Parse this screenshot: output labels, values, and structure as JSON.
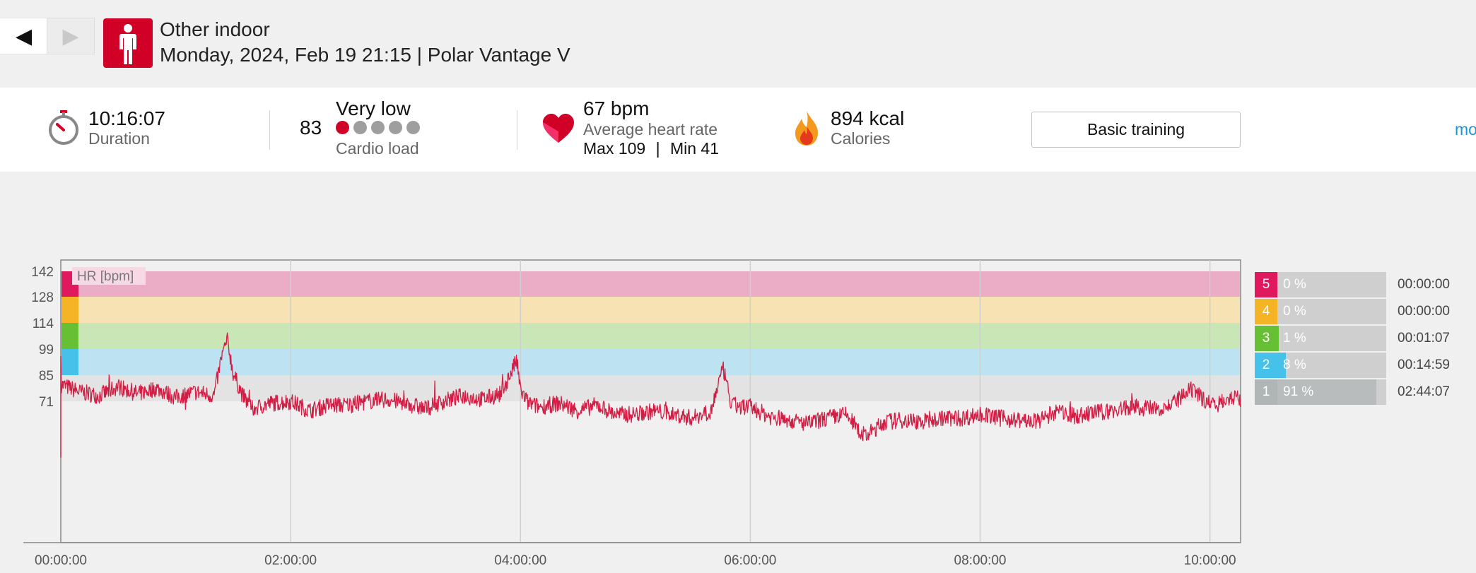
{
  "header": {
    "prev_label": "◀",
    "next_label": "▶",
    "sport_name": "Other indoor",
    "subtitle": "Monday, 2024, Feb 19 21:15 | Polar Vantage V"
  },
  "summary": {
    "duration_value": "10:16:07",
    "duration_label": "Duration",
    "cardio_value": "83",
    "cardio_level": "Very low",
    "cardio_label": "Cardio load",
    "cardio_dots_filled": 1,
    "cardio_dots_total": 5,
    "hr_value": "67 bpm",
    "hr_label": "Average heart rate",
    "hr_max": "Max 109",
    "hr_sep": "|",
    "hr_min": "Min 41",
    "calories_value": "894 kcal",
    "calories_label": "Calories",
    "training_button": "Basic training",
    "more_link": "mo"
  },
  "chart_data": {
    "type": "line",
    "hr_label": "HR [bpm]",
    "y_ticks": [
      "142",
      "128",
      "114",
      "99",
      "85",
      "71"
    ],
    "x_ticks": [
      "00:00:00",
      "02:00:00",
      "04:00:00",
      "06:00:00",
      "08:00:00",
      "10:00:00"
    ],
    "zones_bpm": [
      {
        "zone": 5,
        "from": 128,
        "to": 142
      },
      {
        "zone": 4,
        "from": 114,
        "to": 128
      },
      {
        "zone": 3,
        "from": 99,
        "to": 114
      },
      {
        "zone": 2,
        "from": 85,
        "to": 99
      },
      {
        "zone": 1,
        "from": 71,
        "to": 85
      }
    ],
    "series": [
      {
        "x_min": [
          0,
          10,
          20,
          30,
          40,
          50,
          60,
          70,
          80,
          84,
          87,
          90,
          95,
          100,
          110,
          120,
          130,
          140,
          150,
          160,
          170,
          180,
          190,
          200,
          210,
          220,
          230,
          234,
          238,
          240,
          244,
          250,
          260,
          270,
          280,
          290,
          300,
          310,
          320,
          330,
          340,
          343,
          346,
          350,
          360,
          370,
          380,
          390,
          400,
          410,
          420,
          430,
          440,
          450,
          460,
          470,
          480,
          490,
          500,
          510,
          520,
          530,
          540,
          550,
          560,
          570,
          580,
          590,
          600,
          610,
          616
        ],
        "hr": [
          80,
          76,
          74,
          79,
          75,
          78,
          73,
          76,
          74,
          95,
          104,
          86,
          74,
          67,
          70,
          71,
          66,
          69,
          69,
          71,
          72,
          70,
          67,
          71,
          74,
          72,
          75,
          84,
          93,
          77,
          70,
          68,
          70,
          66,
          69,
          64,
          64,
          66,
          64,
          62,
          67,
          80,
          88,
          69,
          68,
          63,
          61,
          59,
          62,
          64,
          52,
          60,
          61,
          60,
          62,
          62,
          64,
          62,
          61,
          60,
          66,
          63,
          65,
          66,
          68,
          67,
          69,
          77,
          70,
          73,
          72
        ]
      }
    ],
    "y_range": [
      41,
      142
    ],
    "x_range_min": [
      0,
      616
    ],
    "grid": true
  },
  "zones": [
    {
      "num": "5",
      "pct": "0 %",
      "fill": 0,
      "time": "00:00:00",
      "color": "#e0195f",
      "fill_color": "#e0195f"
    },
    {
      "num": "4",
      "pct": "0 %",
      "fill": 0,
      "time": "00:00:00",
      "color": "#f5b326",
      "fill_color": "#f5b326"
    },
    {
      "num": "3",
      "pct": "1 %",
      "fill": 0.01,
      "time": "00:01:07",
      "color": "#67c033",
      "fill_color": "#67c033"
    },
    {
      "num": "2",
      "pct": "8 %",
      "fill": 0.08,
      "time": "00:14:59",
      "color": "#46c2ea",
      "fill_color": "#46c2ea"
    },
    {
      "num": "1",
      "pct": "91 %",
      "fill": 0.91,
      "time": "02:44:07",
      "color": "#b0b6b6",
      "fill_color": "#b8bcbc"
    }
  ],
  "colors": {
    "accent": "#d10027",
    "link": "#1b98d6",
    "hr_line": "#d21e44"
  }
}
